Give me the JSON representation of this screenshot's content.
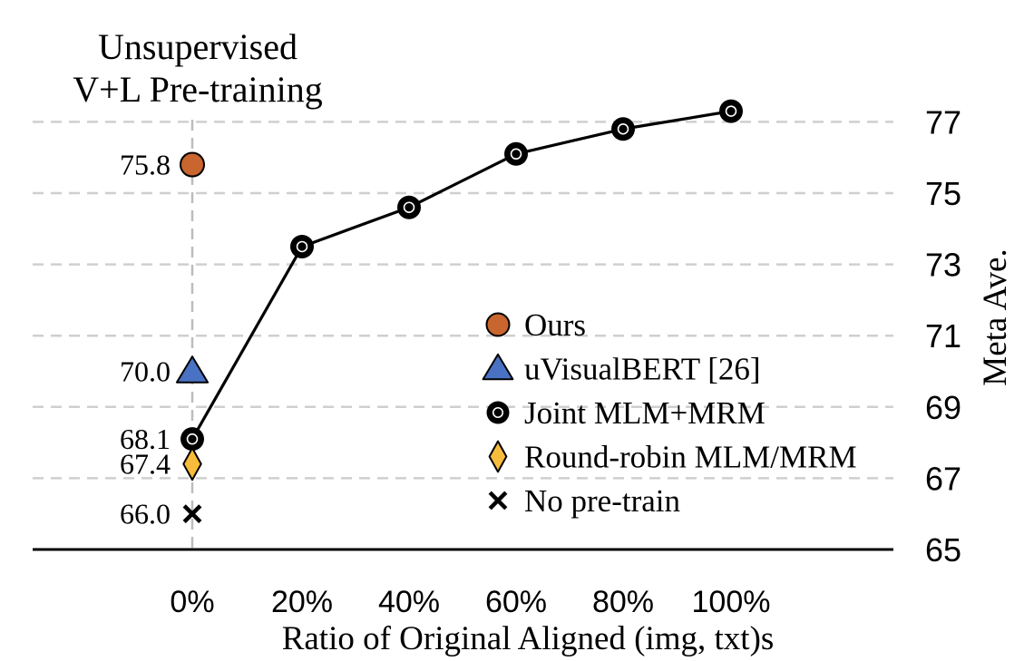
{
  "chart_data": {
    "type": "line",
    "title": "Unsupervised\nV+L Pre-training",
    "xlabel": "Ratio of Original Aligned (img, txt)s",
    "ylabel": "Meta Ave.",
    "x_categories": [
      "0%",
      "20%",
      "40%",
      "60%",
      "80%",
      "100%"
    ],
    "yticks": [
      65,
      67,
      69,
      71,
      73,
      75,
      77
    ],
    "ylim": [
      65,
      77.8
    ],
    "y_axis_side": "right",
    "grid": "horizontal dashed + vertical dashed at 0%",
    "series": [
      {
        "name": "Joint MLM+MRM",
        "marker": "circle-black",
        "color": "#000000",
        "x": [
          "0%",
          "20%",
          "40%",
          "60%",
          "80%",
          "100%"
        ],
        "values": [
          68.1,
          73.5,
          74.6,
          76.1,
          76.8,
          77.3
        ]
      }
    ],
    "points": [
      {
        "name": "Ours",
        "x": "0%",
        "value": 75.8,
        "marker": "circle",
        "color": "#c9652e",
        "label": "75.8"
      },
      {
        "name": "uVisualBERT [26]",
        "x": "0%",
        "value": 70.0,
        "marker": "triangle",
        "color": "#4a72c4",
        "label": "70.0"
      },
      {
        "name": "Joint MLM+MRM",
        "x": "0%",
        "value": 68.1,
        "marker": "circle-black",
        "color": "#000000",
        "label": "68.1"
      },
      {
        "name": "Round-robin MLM/MRM",
        "x": "0%",
        "value": 67.4,
        "marker": "diamond",
        "color": "#f8bc3c",
        "label": "67.4"
      },
      {
        "name": "No pre-train",
        "x": "0%",
        "value": 66.0,
        "marker": "cross",
        "color": "#000000",
        "label": "66.0"
      }
    ],
    "legend": [
      {
        "label": "Ours",
        "marker": "circle",
        "color": "#c9652e"
      },
      {
        "label": "uVisualBERT [26]",
        "marker": "triangle",
        "color": "#4a72c4"
      },
      {
        "label": "Joint MLM+MRM",
        "marker": "circle-black",
        "color": "#000000"
      },
      {
        "label": "Round-robin MLM/MRM",
        "marker": "diamond",
        "color": "#f8bc3c"
      },
      {
        "label": "No pre-train",
        "marker": "cross",
        "color": "#000000"
      }
    ],
    "legend_position": "center-right"
  }
}
